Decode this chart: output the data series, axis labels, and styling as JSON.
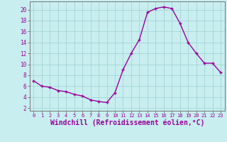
{
  "hours": [
    0,
    1,
    2,
    3,
    4,
    5,
    6,
    7,
    8,
    9,
    10,
    11,
    12,
    13,
    14,
    15,
    16,
    17,
    18,
    19,
    20,
    21,
    22,
    23
  ],
  "values": [
    7.0,
    6.0,
    5.8,
    5.2,
    5.0,
    4.5,
    4.2,
    3.5,
    3.2,
    3.0,
    4.8,
    9.0,
    12.0,
    14.5,
    19.5,
    20.2,
    20.5,
    20.2,
    17.5,
    14.0,
    12.0,
    10.2,
    10.2,
    8.5
  ],
  "line_color": "#990099",
  "marker": "+",
  "marker_size": 3,
  "line_width": 1.0,
  "bg_color": "#c8eef0",
  "grid_color": "#aad8da",
  "xlabel": "Windchill (Refroidissement éolien,°C)",
  "xlabel_fontsize": 7,
  "ytick_labels": [
    "2",
    "4",
    "6",
    "8",
    "10",
    "12",
    "14",
    "16",
    "18",
    "20"
  ],
  "ytick_values": [
    2,
    4,
    6,
    8,
    10,
    12,
    14,
    16,
    18,
    20
  ],
  "xtick_labels": [
    "0",
    "1",
    "2",
    "3",
    "4",
    "5",
    "6",
    "7",
    "8",
    "9",
    "10",
    "11",
    "12",
    "13",
    "14",
    "15",
    "16",
    "17",
    "18",
    "19",
    "20",
    "21",
    "22",
    "23"
  ],
  "ylim": [
    1.5,
    21.5
  ],
  "xlim": [
    -0.5,
    23.5
  ],
  "spine_color": "#777777",
  "tick_color": "#990099",
  "label_color": "#990099"
}
